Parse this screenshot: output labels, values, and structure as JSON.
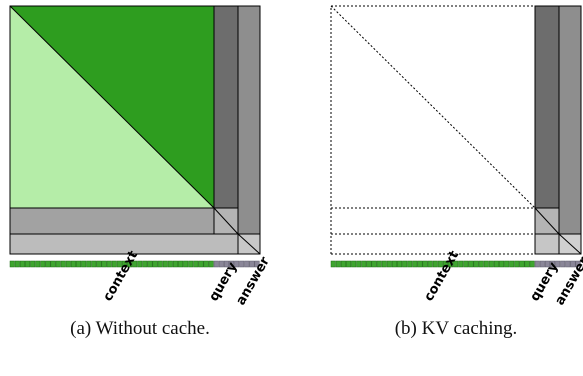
{
  "colors": {
    "dark_green": "#2e9d1f",
    "light_green": "#b5eda8",
    "dark_gray": "#6d6d6d",
    "mid_gray": "#8e8e8e",
    "light_gray": "#b8b8b8",
    "token_green": "#3ea52f",
    "token_gray": "#8a8698"
  },
  "panels": [
    {
      "caption": "(a) Without cache.",
      "labels": [
        "context",
        "query",
        "answer"
      ]
    },
    {
      "caption": "(b) KV caching.",
      "labels": [
        "context",
        "query",
        "answer"
      ]
    }
  ]
}
